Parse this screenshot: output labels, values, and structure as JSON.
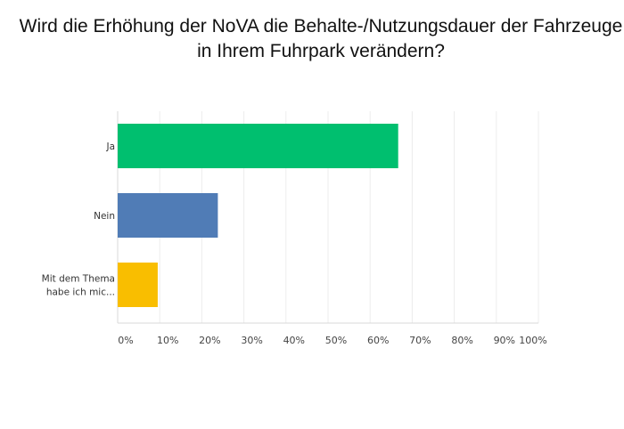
{
  "chart_data": {
    "type": "bar",
    "orientation": "horizontal",
    "title": "Wird die Erhöhung der NoVA die Behalte-/Nutzungsdauer der Fahrzeuge in Ihrem Fuhrpark verändern?",
    "categories": [
      "Ja",
      "Nein",
      "Mit dem Thema habe ich mic..."
    ],
    "category_lines": [
      [
        "Ja"
      ],
      [
        "Nein"
      ],
      [
        "Mit dem Thema",
        "habe ich mic..."
      ]
    ],
    "values": [
      66.67,
      23.81,
      9.52
    ],
    "colors": [
      "#00BF6F",
      "#507CB6",
      "#F9BE00"
    ],
    "xlim": [
      0,
      100
    ],
    "xticks": [
      "0%",
      "10%",
      "20%",
      "30%",
      "40%",
      "50%",
      "60%",
      "70%",
      "80%",
      "90%",
      "100%"
    ],
    "grid": true,
    "xlabel": "",
    "ylabel": ""
  }
}
